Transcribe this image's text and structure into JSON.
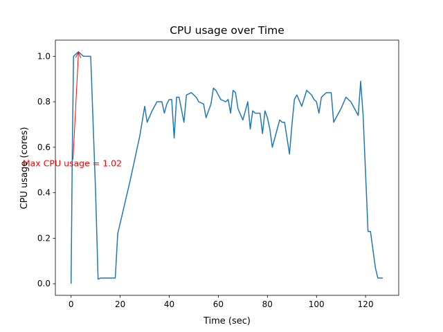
{
  "chart_data": {
    "type": "line",
    "title": "CPU usage over Time",
    "xlabel": "Time (sec)",
    "ylabel": "CPU usage (cores)",
    "xlim": [
      -6.4,
      133.5
    ],
    "ylim": [
      -0.051,
      1.071
    ],
    "xticks": [
      0,
      20,
      40,
      60,
      80,
      100,
      120
    ],
    "yticks": [
      0.0,
      0.2,
      0.4,
      0.6,
      0.8,
      1.0
    ],
    "xtick_labels": [
      "0",
      "20",
      "40",
      "60",
      "80",
      "100",
      "120"
    ],
    "ytick_labels": [
      "0.0",
      "0.2",
      "0.4",
      "0.6",
      "0.8",
      "1.0"
    ],
    "grid": false,
    "line_color": "#1f77b4",
    "annotation_color": "#ff0000",
    "series": [
      {
        "name": "CPU usage",
        "x": [
          0,
          0.5,
          1,
          3,
          5,
          7,
          8,
          10,
          11,
          12,
          13,
          18,
          19,
          24,
          28,
          30,
          31,
          33,
          35,
          37,
          38,
          39,
          40,
          41,
          42,
          43,
          44,
          46,
          47,
          49,
          50,
          51,
          52,
          54,
          55,
          57,
          58,
          59,
          61,
          63,
          64,
          65,
          66,
          67,
          68,
          70,
          72,
          73,
          74,
          75,
          77,
          78,
          79,
          80,
          81,
          82,
          83,
          85,
          86,
          87,
          89,
          90,
          91,
          92,
          94,
          96,
          98,
          99,
          100,
          101,
          102,
          104,
          106,
          107,
          108,
          110,
          112,
          114,
          116,
          117,
          118,
          119,
          121,
          122,
          124,
          125,
          126,
          127
        ],
        "y": [
          0.0,
          0.58,
          1.0,
          1.02,
          1.0,
          1.0,
          1.0,
          0.4,
          0.02,
          0.025,
          0.025,
          0.025,
          0.22,
          0.45,
          0.65,
          0.78,
          0.71,
          0.76,
          0.8,
          0.8,
          0.75,
          0.79,
          0.81,
          0.81,
          0.64,
          0.82,
          0.82,
          0.71,
          0.83,
          0.84,
          0.83,
          0.82,
          0.8,
          0.79,
          0.73,
          0.79,
          0.86,
          0.85,
          0.81,
          0.8,
          0.81,
          0.75,
          0.85,
          0.84,
          0.77,
          0.72,
          0.8,
          0.68,
          0.76,
          0.75,
          0.75,
          0.66,
          0.76,
          0.73,
          0.68,
          0.6,
          0.64,
          0.72,
          0.71,
          0.71,
          0.57,
          0.7,
          0.81,
          0.83,
          0.78,
          0.85,
          0.83,
          0.81,
          0.8,
          0.75,
          0.82,
          0.84,
          0.84,
          0.71,
          0.73,
          0.77,
          0.82,
          0.8,
          0.76,
          0.74,
          0.89,
          0.74,
          0.23,
          0.23,
          0.07,
          0.025,
          0.025,
          0.025
        ]
      }
    ],
    "annotation": {
      "text": "Max CPU usage = 1.02",
      "point": [
        3,
        1.02
      ],
      "text_anchor_data": [
        0.5,
        0.54
      ]
    }
  }
}
